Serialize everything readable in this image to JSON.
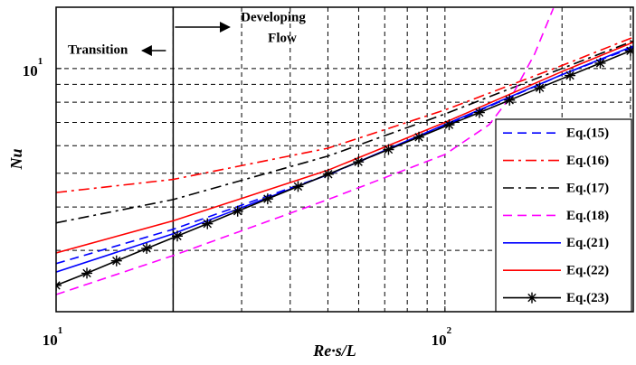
{
  "chart_data": {
    "type": "line",
    "xlabel": "Re·s/L",
    "ylabel": "Nu",
    "xlog": true,
    "ylog": true,
    "grid": true,
    "xlim": [
      10,
      305
    ],
    "ylim": [
      2,
      15
    ],
    "xticks": [
      {
        "value": 10,
        "label": "10",
        "exponent": "1"
      },
      {
        "value": 100,
        "label": "10",
        "exponent": "2"
      }
    ],
    "yticks": [
      {
        "value": 10,
        "label": "10",
        "exponent": "1"
      }
    ],
    "xminor": [
      20,
      30,
      40,
      50,
      60,
      70,
      80,
      90,
      200,
      300
    ],
    "yminor": [
      3,
      4,
      5,
      6,
      7,
      8,
      9
    ],
    "divider": 20,
    "annotations": [
      "Transition",
      "Developing",
      "Flow"
    ],
    "legend": "lower right",
    "series": [
      {
        "name": "Eq.(15)",
        "color": "#0000ff",
        "dash": "dashed",
        "x": [
          10,
          20,
          50,
          100,
          200,
          305
        ],
        "values": [
          2.75,
          3.45,
          4.95,
          6.85,
          9.6,
          11.5
        ]
      },
      {
        "name": "Eq.(16)",
        "color": "#ff0000",
        "dash": "dashdot",
        "x": [
          10,
          20,
          50,
          100,
          200,
          305
        ],
        "values": [
          4.4,
          4.8,
          5.9,
          7.6,
          10.2,
          12.3
        ]
      },
      {
        "name": "Eq.(17)",
        "color": "#000000",
        "dash": "dashdot",
        "x": [
          10,
          20,
          50,
          100,
          200,
          305
        ],
        "values": [
          3.6,
          4.2,
          5.6,
          7.4,
          10.0,
          12.0
        ]
      },
      {
        "name": "Eq.(18)",
        "color": "#ff00ff",
        "dash": "dashed",
        "x": [
          10,
          20,
          50,
          100,
          130,
          150,
          170,
          190
        ],
        "values": [
          2.24,
          2.9,
          4.2,
          5.66,
          6.9,
          8.5,
          11,
          14.9
        ]
      },
      {
        "name": "Eq.(21)",
        "color": "#0000ff",
        "dash": "solid",
        "x": [
          10,
          20,
          50,
          100,
          200,
          305
        ],
        "values": [
          2.6,
          3.35,
          4.95,
          6.9,
          9.6,
          11.6
        ]
      },
      {
        "name": "Eq.(22)",
        "color": "#ff0000",
        "dash": "solid",
        "x": [
          10,
          20,
          50,
          100,
          200,
          305
        ],
        "values": [
          2.95,
          3.65,
          5.1,
          7.0,
          9.8,
          11.9
        ]
      },
      {
        "name": "Eq.(23)",
        "color": "#000000",
        "dash": "solid",
        "marker": "star",
        "x": [
          10,
          12.0,
          14.3,
          17.1,
          20.5,
          24.5,
          29.3,
          35.0,
          41.9,
          50.1,
          59.9,
          71.6,
          85.7,
          102.5,
          122.6,
          146.6,
          175.3,
          209.7,
          250.8,
          300
        ],
        "values": [
          2.38,
          2.58,
          2.8,
          3.04,
          3.3,
          3.58,
          3.89,
          4.22,
          4.58,
          4.97,
          5.39,
          5.85,
          6.35,
          6.89,
          7.47,
          8.11,
          8.8,
          9.55,
          10.36,
          11.24
        ]
      }
    ]
  }
}
